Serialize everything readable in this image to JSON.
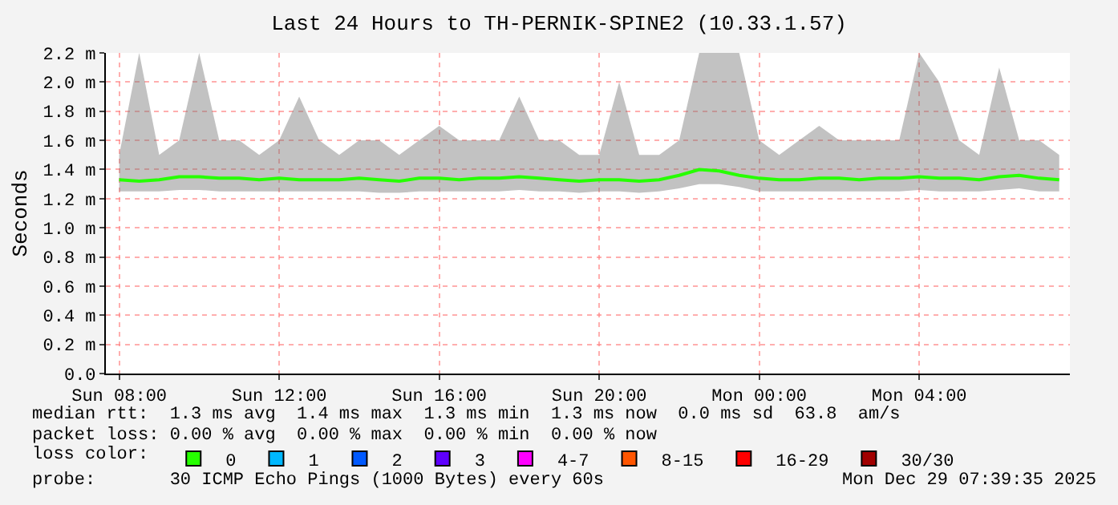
{
  "chart_data": {
    "type": "line",
    "title": "Last 24 Hours to TH-PERNIK-SPINE2 (10.33.1.57)",
    "ylabel": "Seconds",
    "legend_title": "loss color:",
    "legend": "bottom",
    "grid": true,
    "x": [
      "2025-12-28T08:00",
      "2025-12-28T08:30",
      "2025-12-28T09:00",
      "2025-12-28T09:30",
      "2025-12-28T10:00",
      "2025-12-28T10:30",
      "2025-12-28T11:00",
      "2025-12-28T11:30",
      "2025-12-28T12:00",
      "2025-12-28T12:30",
      "2025-12-28T13:00",
      "2025-12-28T13:30",
      "2025-12-28T14:00",
      "2025-12-28T14:30",
      "2025-12-28T15:00",
      "2025-12-28T15:30",
      "2025-12-28T16:00",
      "2025-12-28T16:30",
      "2025-12-28T17:00",
      "2025-12-28T17:30",
      "2025-12-28T18:00",
      "2025-12-28T18:30",
      "2025-12-28T19:00",
      "2025-12-28T19:30",
      "2025-12-28T20:00",
      "2025-12-28T20:30",
      "2025-12-28T21:00",
      "2025-12-28T21:30",
      "2025-12-28T22:00",
      "2025-12-28T22:30",
      "2025-12-28T23:00",
      "2025-12-28T23:30",
      "2025-12-29T00:00",
      "2025-12-29T00:30",
      "2025-12-29T01:00",
      "2025-12-29T01:30",
      "2025-12-29T02:00",
      "2025-12-29T02:30",
      "2025-12-29T03:00",
      "2025-12-29T03:30",
      "2025-12-29T04:00",
      "2025-12-29T04:30",
      "2025-12-29T05:00",
      "2025-12-29T05:30",
      "2025-12-29T06:00",
      "2025-12-29T06:30",
      "2025-12-29T07:00",
      "2025-12-29T07:30"
    ],
    "xlim": [
      "2025-12-28T07:40",
      "2025-12-29T07:46"
    ],
    "xticks": [
      {
        "value": "2025-12-28T08:00",
        "label": "Sun 08:00"
      },
      {
        "value": "2025-12-28T12:00",
        "label": "Sun 12:00"
      },
      {
        "value": "2025-12-28T16:00",
        "label": "Sun 16:00"
      },
      {
        "value": "2025-12-28T20:00",
        "label": "Sun 20:00"
      },
      {
        "value": "2025-12-29T00:00",
        "label": "Mon 00:00"
      },
      {
        "value": "2025-12-29T04:00",
        "label": "Mon 04:00"
      }
    ],
    "ylim": [
      0,
      2.2
    ],
    "yticks": [
      {
        "value": 0,
        "label": "0.0"
      },
      {
        "value": 0.2,
        "label": "0.2 m"
      },
      {
        "value": 0.4,
        "label": "0.4 m"
      },
      {
        "value": 0.6,
        "label": "0.6 m"
      },
      {
        "value": 0.8,
        "label": "0.8 m"
      },
      {
        "value": 1.0,
        "label": "1.0 m"
      },
      {
        "value": 1.2,
        "label": "1.2 m"
      },
      {
        "value": 1.4,
        "label": "1.4 m"
      },
      {
        "value": 1.6,
        "label": "1.6 m"
      },
      {
        "value": 1.8,
        "label": "1.8 m"
      },
      {
        "value": 2.0,
        "label": "2.0 m"
      },
      {
        "value": 2.2,
        "label": "2.2 m"
      }
    ],
    "series": [
      {
        "name": "0",
        "color": "#26ff00",
        "values": [
          1.33,
          1.32,
          1.33,
          1.35,
          1.35,
          1.34,
          1.34,
          1.33,
          1.34,
          1.33,
          1.33,
          1.33,
          1.34,
          1.33,
          1.32,
          1.34,
          1.34,
          1.33,
          1.34,
          1.34,
          1.35,
          1.34,
          1.33,
          1.32,
          1.33,
          1.33,
          1.32,
          1.33,
          1.36,
          1.4,
          1.39,
          1.36,
          1.34,
          1.33,
          1.33,
          1.34,
          1.34,
          1.33,
          1.34,
          1.34,
          1.35,
          1.34,
          1.34,
          1.33,
          1.35,
          1.36,
          1.34,
          1.33
        ],
        "lower": [
          1.25,
          1.25,
          1.25,
          1.26,
          1.26,
          1.25,
          1.25,
          1.25,
          1.25,
          1.25,
          1.25,
          1.25,
          1.25,
          1.24,
          1.24,
          1.25,
          1.25,
          1.25,
          1.25,
          1.25,
          1.26,
          1.25,
          1.25,
          1.24,
          1.25,
          1.25,
          1.24,
          1.25,
          1.27,
          1.3,
          1.3,
          1.28,
          1.25,
          1.25,
          1.25,
          1.25,
          1.25,
          1.25,
          1.25,
          1.25,
          1.26,
          1.25,
          1.25,
          1.25,
          1.26,
          1.27,
          1.25,
          1.25
        ],
        "upper": [
          1.5,
          2.2,
          1.5,
          1.6,
          2.2,
          1.6,
          1.6,
          1.5,
          1.6,
          1.9,
          1.6,
          1.5,
          1.6,
          1.6,
          1.5,
          1.6,
          1.7,
          1.6,
          1.6,
          1.6,
          1.9,
          1.6,
          1.6,
          1.5,
          1.5,
          2.0,
          1.5,
          1.5,
          1.6,
          2.2,
          2.2,
          2.2,
          1.6,
          1.5,
          1.6,
          1.7,
          1.6,
          1.6,
          1.6,
          1.6,
          2.2,
          2.0,
          1.6,
          1.5,
          2.1,
          1.6,
          1.6,
          1.5
        ]
      },
      {
        "name": "1",
        "color": "#00b8ff",
        "values": [
          null,
          null,
          null,
          null,
          null,
          null,
          null,
          null,
          null,
          null,
          null,
          null,
          null,
          null,
          null,
          null,
          null,
          null,
          null,
          null,
          null,
          null,
          null,
          null,
          null,
          null,
          null,
          null,
          null,
          null,
          null,
          null,
          null,
          null,
          null,
          null,
          null,
          null,
          null,
          null,
          null,
          null,
          null,
          null,
          null,
          null,
          null,
          null
        ]
      },
      {
        "name": "2",
        "color": "#0059ff",
        "values": [
          null,
          null,
          null,
          null,
          null,
          null,
          null,
          null,
          null,
          null,
          null,
          null,
          null,
          null,
          null,
          null,
          null,
          null,
          null,
          null,
          null,
          null,
          null,
          null,
          null,
          null,
          null,
          null,
          null,
          null,
          null,
          null,
          null,
          null,
          null,
          null,
          null,
          null,
          null,
          null,
          null,
          null,
          null,
          null,
          null,
          null,
          null,
          null
        ]
      },
      {
        "name": "3",
        "color": "#5e00ff",
        "values": [
          null,
          null,
          null,
          null,
          null,
          null,
          null,
          null,
          null,
          null,
          null,
          null,
          null,
          null,
          null,
          null,
          null,
          null,
          null,
          null,
          null,
          null,
          null,
          null,
          null,
          null,
          null,
          null,
          null,
          null,
          null,
          null,
          null,
          null,
          null,
          null,
          null,
          null,
          null,
          null,
          null,
          null,
          null,
          null,
          null,
          null,
          null,
          null
        ]
      },
      {
        "name": "4-7",
        "color": "#ff00ff",
        "values": [
          null,
          null,
          null,
          null,
          null,
          null,
          null,
          null,
          null,
          null,
          null,
          null,
          null,
          null,
          null,
          null,
          null,
          null,
          null,
          null,
          null,
          null,
          null,
          null,
          null,
          null,
          null,
          null,
          null,
          null,
          null,
          null,
          null,
          null,
          null,
          null,
          null,
          null,
          null,
          null,
          null,
          null,
          null,
          null,
          null,
          null,
          null,
          null
        ]
      },
      {
        "name": "8-15",
        "color": "#ff5500",
        "values": [
          null,
          null,
          null,
          null,
          null,
          null,
          null,
          null,
          null,
          null,
          null,
          null,
          null,
          null,
          null,
          null,
          null,
          null,
          null,
          null,
          null,
          null,
          null,
          null,
          null,
          null,
          null,
          null,
          null,
          null,
          null,
          null,
          null,
          null,
          null,
          null,
          null,
          null,
          null,
          null,
          null,
          null,
          null,
          null,
          null,
          null,
          null,
          null
        ]
      },
      {
        "name": "16-29",
        "color": "#ff0000",
        "values": [
          null,
          null,
          null,
          null,
          null,
          null,
          null,
          null,
          null,
          null,
          null,
          null,
          null,
          null,
          null,
          null,
          null,
          null,
          null,
          null,
          null,
          null,
          null,
          null,
          null,
          null,
          null,
          null,
          null,
          null,
          null,
          null,
          null,
          null,
          null,
          null,
          null,
          null,
          null,
          null,
          null,
          null,
          null,
          null,
          null,
          null,
          null,
          null
        ]
      },
      {
        "name": "30/30",
        "color": "#a10000",
        "values": [
          null,
          null,
          null,
          null,
          null,
          null,
          null,
          null,
          null,
          null,
          null,
          null,
          null,
          null,
          null,
          null,
          null,
          null,
          null,
          null,
          null,
          null,
          null,
          null,
          null,
          null,
          null,
          null,
          null,
          null,
          null,
          null,
          null,
          null,
          null,
          null,
          null,
          null,
          null,
          null,
          null,
          null,
          null,
          null,
          null,
          null,
          null,
          null
        ]
      }
    ],
    "annotations": [
      "median rtt:  1.3 ms avg  1.4 ms max  1.3 ms min  1.3 ms now  0.0 ms sd  63.8  am/s",
      "packet loss: 0.00 % avg  0.00 % max  0.00 % min  0.00 % now",
      "probe:       30 ICMP Echo Pings (1000 Bytes) every 60s",
      "Mon Dec 29 07:39:35 2025"
    ]
  }
}
